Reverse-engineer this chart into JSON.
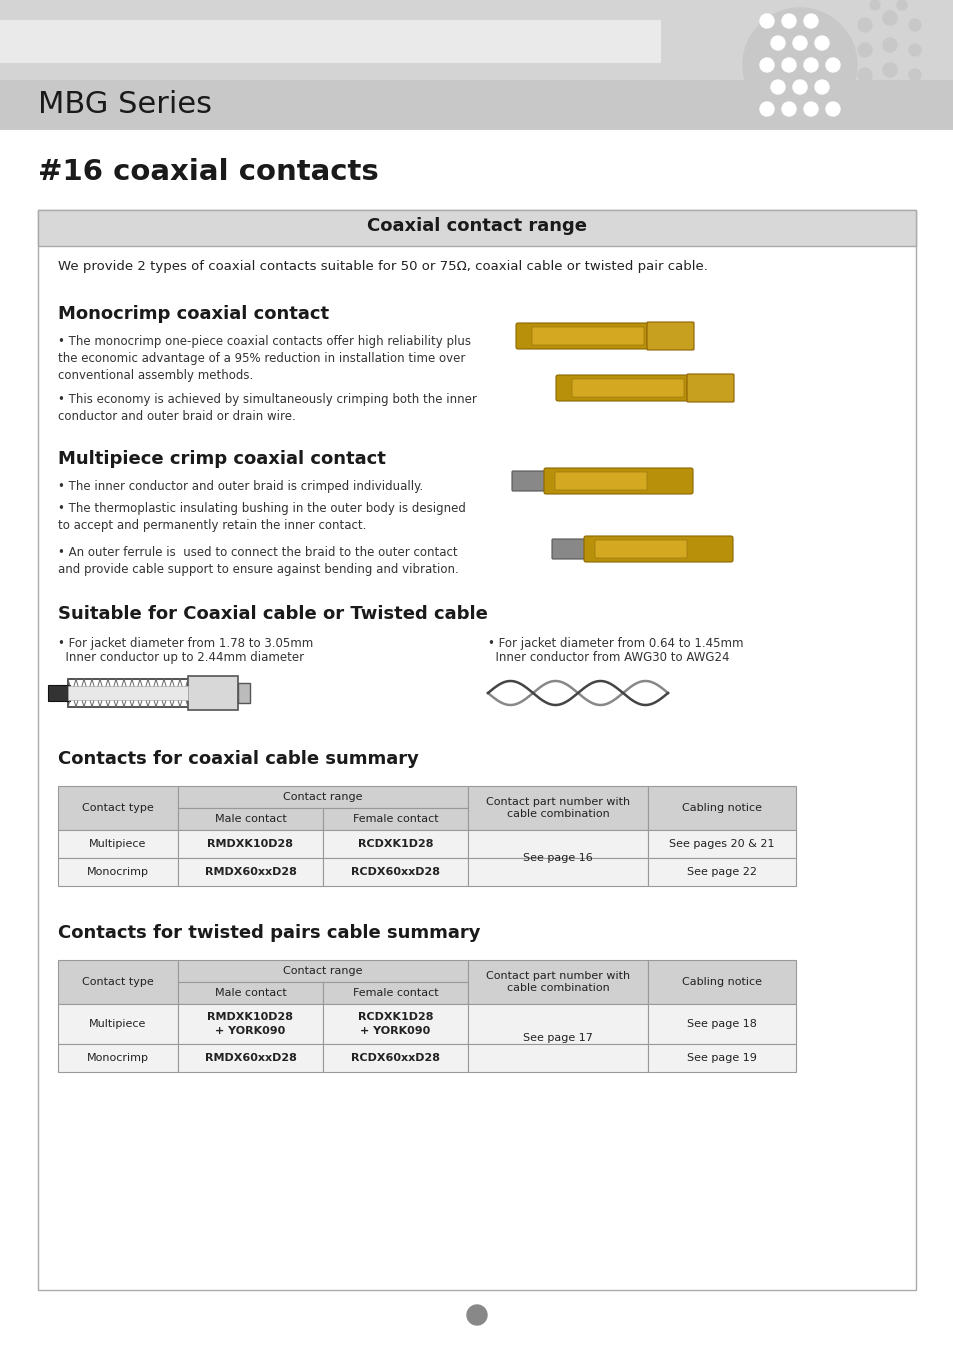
{
  "page_bg": "#ffffff",
  "header_title": "MBG Series",
  "section_title": "#16 coaxial contacts",
  "box_title": "Coaxial contact range",
  "intro_text": "We provide 2 types of coaxial contacts suitable for 50 or 75Ω, coaxial cable or twisted pair cable.",
  "mono_title": "Monocrimp coaxial contact",
  "mono_bullets": [
    "• The monocrimp one-piece coaxial contacts offer high reliability plus\nthe economic advantage of a 95% reduction in installation time over\nconventional assembly methods.",
    "• This economy is achieved by simultaneously crimping both the inner\nconductor and outer braid or drain wire."
  ],
  "multi_title": "Multipiece crimp coaxial contact",
  "multi_bullets": [
    "• The inner conductor and outer braid is crimped individually.",
    "• The thermoplastic insulating bushing in the outer body is designed\nto accept and permanently retain the inner contact.",
    "• An outer ferrule is  used to connect the braid to the outer contact\nand provide cable support to ensure against bending and vibration."
  ],
  "cable_title": "Suitable for Coaxial cable or Twisted cable",
  "cable_left_bullets": [
    "• For jacket diameter from 1.78 to 3.05mm",
    "  Inner conductor up to 2.44mm diameter"
  ],
  "cable_right_bullets": [
    "• For jacket diameter from 0.64 to 1.45mm",
    "  Inner conductor from AWG30 to AWG24"
  ],
  "coax_summary_title": "Contacts for coaxial cable summary",
  "coax_rows": [
    [
      "Multipiece",
      "RMDXK10D28",
      "RCDXK1D28",
      "See page 16",
      "See pages 20 & 21"
    ],
    [
      "Monocrimp",
      "RMDX60xxD28",
      "RCDX60xxD28",
      "See page 16",
      "See page 22"
    ]
  ],
  "twisted_summary_title": "Contacts for twisted pairs cable summary",
  "twisted_rows": [
    [
      "Multipiece",
      "RMDXK10D28\n+ YORK090",
      "RCDXK1D28\n+ YORK090",
      "See page 17",
      "See page 18"
    ],
    [
      "Monocrimp",
      "RMDX60xxD28",
      "RCDX60xxD28",
      "See page 17",
      "See page 19"
    ]
  ],
  "table_header_bg": "#d0d0d0",
  "table_row_bg": "#f2f2f2",
  "table_border": "#999999",
  "footer_dot_color": "#888888",
  "header_gray_top": "#d4d4d4",
  "header_gray_bottom": "#c8c8c8",
  "header_light_strip": "#eaeaea",
  "box_border": "#aaaaaa",
  "box_title_bg": "#d8d8d8"
}
